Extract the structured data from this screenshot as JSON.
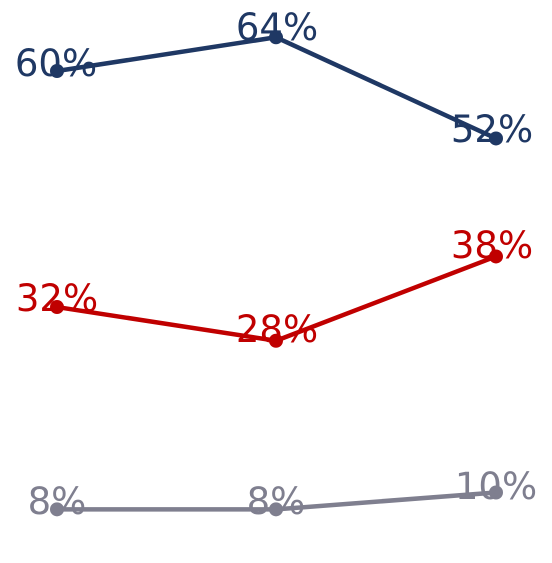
{
  "chart_data": {
    "type": "line",
    "x": [
      "1",
      "2",
      "3"
    ],
    "ylim": [
      0,
      70
    ],
    "grid": false,
    "legend": "none",
    "series": [
      {
        "values": [
          60,
          64,
          52
        ],
        "labels": [
          "60%",
          "64%",
          "52%"
        ],
        "color": "#1f3864"
      },
      {
        "values": [
          32,
          28,
          38
        ],
        "labels": [
          "32%",
          "28%",
          "38%"
        ],
        "color": "#c00000"
      },
      {
        "values": [
          8,
          8,
          10
        ],
        "labels": [
          "8%",
          "8%",
          "10%"
        ],
        "color": "#7f7f8f"
      }
    ]
  }
}
